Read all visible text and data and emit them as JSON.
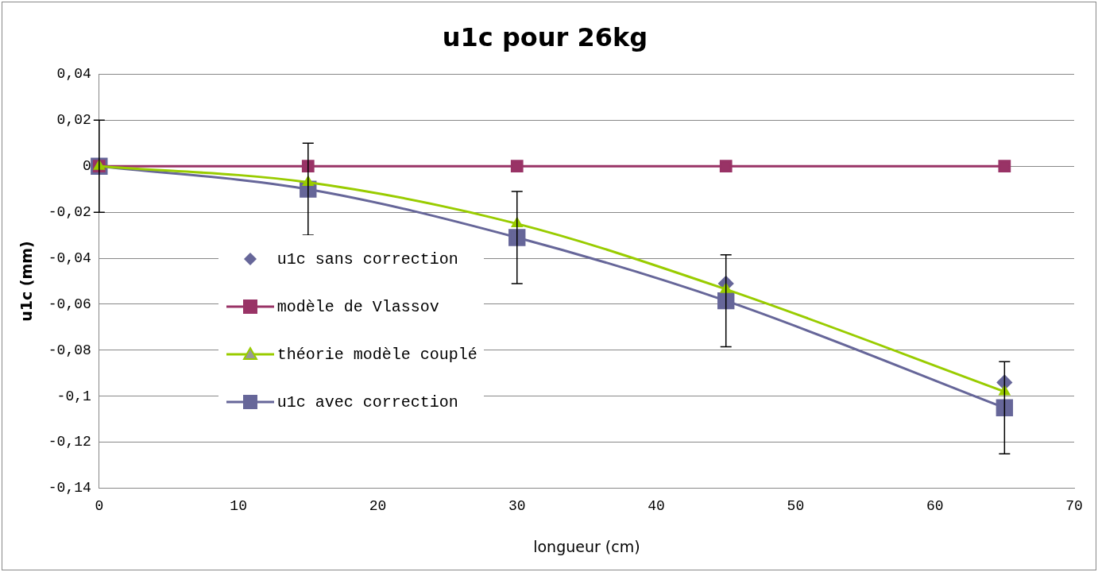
{
  "chart_data": {
    "type": "line",
    "title": "u1c pour 26kg",
    "xlabel": "longueur (cm)",
    "ylabel": "u1c (mm)",
    "x": [
      0,
      15,
      30,
      45,
      65
    ],
    "series": [
      {
        "name": "u1c sans correction",
        "type": "scatter",
        "color": "#666699",
        "marker": "diamond",
        "values": [
          null,
          null,
          null,
          -0.051,
          -0.094
        ]
      },
      {
        "name": "modèle de Vlassov",
        "color": "#993366",
        "marker": "square",
        "values": [
          0,
          0,
          0,
          0,
          0
        ]
      },
      {
        "name": "théorie modèle couplé",
        "color": "#99cc00",
        "marker": "triangle",
        "values": [
          0,
          -0.007,
          -0.025,
          -0.0535,
          -0.098
        ]
      },
      {
        "name": "u1c avec correction",
        "color": "#666699",
        "marker": "square",
        "values": [
          0,
          -0.01,
          -0.031,
          -0.0585,
          -0.105
        ],
        "errors": [
          0.02,
          0.02,
          0.02,
          0.02,
          0.02
        ]
      }
    ],
    "xlim": [
      0,
      70
    ],
    "xticks": [
      0,
      10,
      20,
      30,
      40,
      50,
      60,
      70
    ],
    "ylim": [
      -0.14,
      0.04
    ],
    "yticks": [
      {
        "value": 0.04,
        "label": "0,04"
      },
      {
        "value": 0.02,
        "label": "0,02"
      },
      {
        "value": 0,
        "label": "0"
      },
      {
        "value": -0.02,
        "label": "-0,02"
      },
      {
        "value": -0.04,
        "label": "-0,04"
      },
      {
        "value": -0.06,
        "label": "-0,06"
      },
      {
        "value": -0.08,
        "label": "-0,08"
      },
      {
        "value": -0.1,
        "label": "-0,1"
      },
      {
        "value": -0.12,
        "label": "-0,12"
      },
      {
        "value": -0.14,
        "label": "-0,14"
      }
    ],
    "grid": "y",
    "legend": "left",
    "line_style": "solid"
  }
}
